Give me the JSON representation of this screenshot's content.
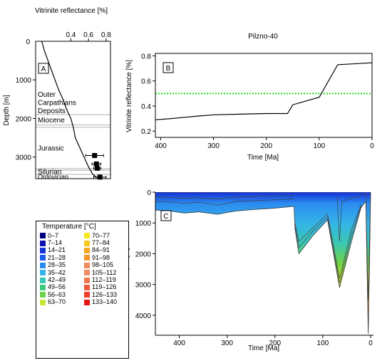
{
  "title": "Pilzno-40",
  "colors": {
    "curve": "#000000",
    "threshold": "#22dd22",
    "grid": "#999999"
  },
  "chart_data": [
    {
      "id": "A",
      "type": "line",
      "panel_label": "A",
      "xlabel": "Vitrinite reflectance [%]",
      "ylabel": "Depth [m]",
      "xlim": [
        0.0,
        0.85
      ],
      "ylim": [
        3560,
        0
      ],
      "xticks": [
        0.4,
        0.6,
        0.8
      ],
      "yticks": [
        1000,
        2000,
        3000
      ],
      "ytick_zero": "0",
      "grid": false,
      "profile": {
        "x": [
          0.07,
          0.1,
          0.14,
          0.18,
          0.22,
          0.26,
          0.31,
          0.35,
          0.4,
          0.43,
          0.45,
          0.5,
          0.55,
          0.6,
          0.65,
          0.7
        ],
        "y": [
          0,
          250,
          500,
          750,
          1000,
          1250,
          1500,
          1750,
          2000,
          2250,
          2500,
          2750,
          3000,
          3250,
          3450,
          3540
        ]
      },
      "measurements": [
        {
          "x": 0.67,
          "y": 2960,
          "xerr": 0.1
        },
        {
          "x": 0.69,
          "y": 3180,
          "xerr": 0.05
        },
        {
          "x": 0.7,
          "y": 3290,
          "xerr": 0.04
        },
        {
          "x": 0.73,
          "y": 3520,
          "xerr": 0.07
        }
      ],
      "units": [
        {
          "name": "Outer Carpathians Deposits",
          "lines": [
            "Outer",
            "Carpathians",
            "Deposits"
          ],
          "top": 0,
          "base": 1900
        },
        {
          "name": "Miocene",
          "lines": [
            "Miocene"
          ],
          "top": 1900,
          "base": 2170
        },
        {
          "name": "Jurassic",
          "lines": [
            "Jurassic"
          ],
          "top": 2230,
          "base": 3300
        },
        {
          "name": "Silurian",
          "lines": [
            "Silurian"
          ],
          "top": 3300,
          "base": 3450
        },
        {
          "name": "Ordovician",
          "lines": [
            "Ordovician"
          ],
          "top": 3450,
          "base": 3560
        }
      ],
      "boundaries": [
        1900,
        2170,
        2230,
        3300,
        3340,
        3450
      ]
    },
    {
      "id": "B",
      "type": "line",
      "panel_label": "B",
      "title": "Pilzno-40",
      "xlabel": "Time [Ma]",
      "ylabel": "Vitrinite reflectance [%]",
      "xlim": [
        410,
        0
      ],
      "ylim": [
        0.15,
        0.82
      ],
      "xticks": [
        400,
        300,
        200,
        100,
        0
      ],
      "yticks": [
        0.2,
        0.4,
        0.6,
        0.8
      ],
      "grid": false,
      "series": [
        {
          "x": [
            410,
            380,
            330,
            300,
            250,
            200,
            160,
            150,
            100,
            65,
            0
          ],
          "y": [
            0.29,
            0.3,
            0.32,
            0.33,
            0.335,
            0.34,
            0.34,
            0.41,
            0.47,
            0.73,
            0.745
          ]
        }
      ],
      "threshold": {
        "y": 0.5,
        "style": "dotted"
      }
    },
    {
      "id": "C",
      "type": "heatmap",
      "panel_label": "C",
      "xlabel": "Time [Ma]",
      "ylabel": "Depth [m]",
      "xlim": [
        450,
        0
      ],
      "ylim": [
        4650,
        0
      ],
      "xticks": [
        400,
        300,
        200,
        100,
        0
      ],
      "yticks": [
        0,
        1000,
        2000,
        3000,
        4000
      ],
      "grid": false,
      "bottom_boundary": {
        "x": [
          450,
          420,
          390,
          360,
          320,
          300,
          280,
          250,
          200,
          160,
          158,
          150,
          120,
          90,
          65,
          40,
          20,
          10,
          5,
          2,
          0
        ],
        "y": [
          580,
          610,
          680,
          640,
          720,
          660,
          610,
          570,
          520,
          460,
          1200,
          2000,
          1400,
          900,
          3100,
          1600,
          500,
          300,
          4600,
          2000,
          0
        ]
      },
      "top_boundary": {
        "x": [
          450,
          160,
          158,
          120,
          90,
          65,
          40,
          20,
          10,
          5,
          2,
          0
        ],
        "y": [
          0,
          0,
          0,
          0,
          0,
          0,
          0,
          0,
          0,
          0,
          0,
          0
        ]
      },
      "horizons": [
        {
          "x": [
            450,
            420,
            390,
            360,
            320,
            300,
            280,
            250,
            200,
            160
          ],
          "y": [
            150,
            170,
            200,
            180,
            230,
            190,
            160,
            140,
            120,
            100
          ]
        },
        {
          "x": [
            450,
            420,
            390,
            360,
            320,
            300,
            280,
            250,
            200,
            160
          ],
          "y": [
            300,
            320,
            360,
            330,
            420,
            360,
            300,
            280,
            250,
            220
          ]
        },
        {
          "x": [
            158,
            150,
            120,
            90,
            65,
            40,
            20
          ],
          "y": [
            1000,
            1600,
            1150,
            700,
            2800,
            1200,
            400
          ]
        },
        {
          "x": [
            158,
            150,
            120,
            90,
            65,
            40,
            20
          ],
          "y": [
            1100,
            1800,
            1250,
            800,
            2950,
            1400,
            450
          ]
        },
        {
          "x": [
            70,
            65,
            60,
            40,
            20,
            10,
            5,
            2,
            0
          ],
          "y": [
            150,
            1600,
            300,
            200,
            100,
            50,
            3500,
            1200,
            0
          ]
        }
      ],
      "legend": {
        "title": "Temperature [°C]",
        "entries": [
          {
            "label": "0–7",
            "color": "#00007f"
          },
          {
            "label": "7–14",
            "color": "#0a10b0"
          },
          {
            "label": "14–21",
            "color": "#1530d6"
          },
          {
            "label": "21–28",
            "color": "#1e5ae8"
          },
          {
            "label": "28–35",
            "color": "#2b8cf0"
          },
          {
            "label": "35–42",
            "color": "#35b4e8"
          },
          {
            "label": "42–49",
            "color": "#3ac8b4"
          },
          {
            "label": "49–56",
            "color": "#3cc878"
          },
          {
            "label": "56–63",
            "color": "#6ed24a"
          },
          {
            "label": "63–70",
            "color": "#c8e632"
          },
          {
            "label": "70–77",
            "color": "#f5e61e"
          },
          {
            "label": "77–84",
            "color": "#f5c81e"
          },
          {
            "label": "84–91",
            "color": "#f5aa1e"
          },
          {
            "label": "91–98",
            "color": "#f59628"
          },
          {
            "label": "98–105",
            "color": "#f08c5a"
          },
          {
            "label": "105–112",
            "color": "#f08c64"
          },
          {
            "label": "112–119",
            "color": "#f07850"
          },
          {
            "label": "119–126",
            "color": "#f05a3c"
          },
          {
            "label": "126–133",
            "color": "#f03c28"
          },
          {
            "label": "133–140",
            "color": "#e61414"
          }
        ]
      }
    }
  ]
}
